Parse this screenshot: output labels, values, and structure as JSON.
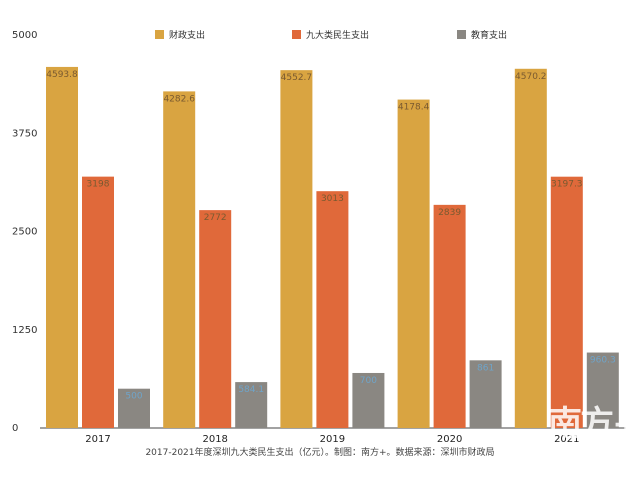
{
  "chart_data": {
    "type": "bar",
    "categories": [
      "2017",
      "2018",
      "2019",
      "2020",
      "2021"
    ],
    "series": [
      {
        "name": "财政支出",
        "values": [
          4593.8,
          4282.6,
          4552.7,
          4178.4,
          4570.2
        ],
        "color": "#d9a441"
      },
      {
        "name": "九大类民生支出",
        "values": [
          3198,
          2772,
          3013,
          2839,
          3197.3
        ],
        "color": "#e0693a"
      },
      {
        "name": "教育支出",
        "values": [
          500,
          584.1,
          700,
          861,
          960
        ]
      }
    ],
    "data_labels": [
      [
        "4593.8",
        "4282.6",
        "4552.7",
        "4178.4",
        "4570.2"
      ],
      [
        "3198",
        "2772",
        "3013",
        "2839",
        "3197.3"
      ],
      [
        "500",
        "584.1",
        "700",
        "861",
        "960.3"
      ]
    ],
    "yticks": [
      "0",
      "1250",
      "2500",
      "3750",
      "5000"
    ],
    "ylim": [
      0,
      5000
    ],
    "legend": "top-center",
    "grid": false,
    "colors": {
      "edu": "#8a8782",
      "edu_label": "#6fa4c9",
      "cat_label": "#7a5a30"
    }
  },
  "caption": "2017-2021年度深圳九大类民生支出（亿元）。制图：南方+。数据来源：深圳市财政局",
  "watermark": "南方+"
}
